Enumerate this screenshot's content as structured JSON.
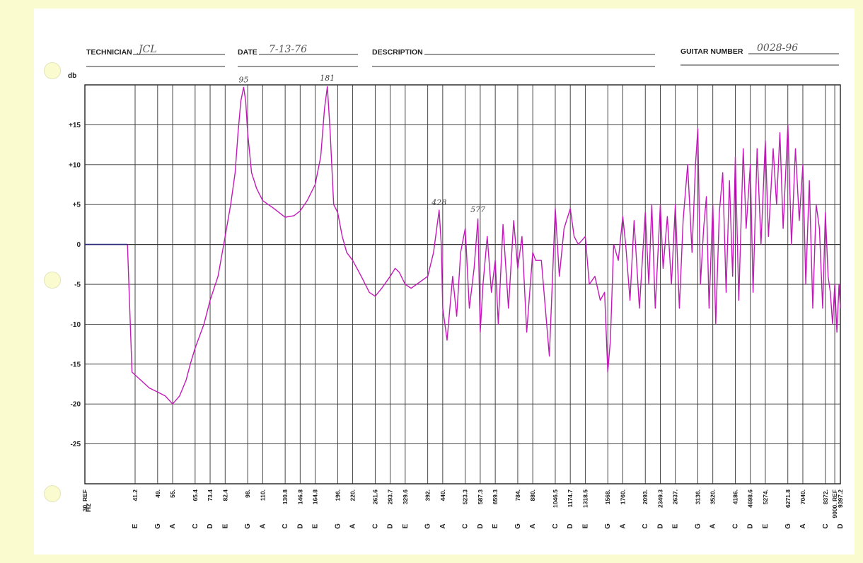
{
  "header": {
    "technician_label": "TECHNICIAN",
    "technician_value": "JCL",
    "date_label": "DATE",
    "date_value": "7-13-76",
    "description_label": "DESCRIPTION",
    "description_value": "",
    "guitar_number_label": "GUITAR NUMBER",
    "guitar_number_value": "0028-96"
  },
  "chart_data": {
    "type": "line",
    "title": "",
    "ylabel": "db",
    "xlabel": "Hz",
    "ylim": [
      -30,
      20
    ],
    "y_ticks": [
      "+15",
      "+10",
      "+5",
      "0",
      "-5",
      "-10",
      "-15",
      "-20",
      "-25"
    ],
    "grid": true,
    "series_color": "#c21ab8",
    "x_ticks": [
      {
        "freq": "30. REF",
        "note": ""
      },
      {
        "freq": "41.2",
        "note": "E"
      },
      {
        "freq": "49.",
        "note": "G"
      },
      {
        "freq": "55.",
        "note": "A"
      },
      {
        "freq": "65.4",
        "note": "C"
      },
      {
        "freq": "73.4",
        "note": "D"
      },
      {
        "freq": "82.4",
        "note": "E"
      },
      {
        "freq": "98.",
        "note": "G"
      },
      {
        "freq": "110.",
        "note": "A"
      },
      {
        "freq": "130.8",
        "note": "C"
      },
      {
        "freq": "146.8",
        "note": "D"
      },
      {
        "freq": "164.8",
        "note": "E"
      },
      {
        "freq": "196.",
        "note": "G"
      },
      {
        "freq": "220.",
        "note": "A"
      },
      {
        "freq": "261.6",
        "note": "C"
      },
      {
        "freq": "293.7",
        "note": "D"
      },
      {
        "freq": "329.6",
        "note": "E"
      },
      {
        "freq": "392.",
        "note": "G"
      },
      {
        "freq": "440.",
        "note": "A"
      },
      {
        "freq": "523.3",
        "note": "C"
      },
      {
        "freq": "587.3",
        "note": "D"
      },
      {
        "freq": "659.3",
        "note": "E"
      },
      {
        "freq": "784.",
        "note": "G"
      },
      {
        "freq": "880.",
        "note": "A"
      },
      {
        "freq": "1046.5",
        "note": "C"
      },
      {
        "freq": "1174.7",
        "note": "D"
      },
      {
        "freq": "1318.5",
        "note": "E"
      },
      {
        "freq": "1568.",
        "note": "G"
      },
      {
        "freq": "1760.",
        "note": "A"
      },
      {
        "freq": "2093.",
        "note": "C"
      },
      {
        "freq": "2349.3",
        "note": "D"
      },
      {
        "freq": "2637.",
        "note": "E"
      },
      {
        "freq": "3136.",
        "note": "G"
      },
      {
        "freq": "3520.",
        "note": "A"
      },
      {
        "freq": "4186.",
        "note": "C"
      },
      {
        "freq": "4698.6",
        "note": "D"
      },
      {
        "freq": "5274.",
        "note": "E"
      },
      {
        "freq": "6271.8",
        "note": "G"
      },
      {
        "freq": "7040.",
        "note": "A"
      },
      {
        "freq": "8372.",
        "note": "C"
      },
      {
        "freq": "9000. REF",
        "note": ""
      },
      {
        "freq": "9397.2",
        "note": "D"
      }
    ],
    "annotations": [
      {
        "text": "95",
        "freq": 95,
        "db": 19.8
      },
      {
        "text": "181",
        "freq": 181,
        "db": 20.0
      },
      {
        "text": "428",
        "freq": 428,
        "db": 4.4
      },
      {
        "text": "577",
        "freq": 577,
        "db": 3.5
      }
    ],
    "response": [
      [
        30,
        0
      ],
      [
        34,
        0
      ],
      [
        38,
        0
      ],
      [
        39.5,
        0
      ],
      [
        40,
        -8
      ],
      [
        40.5,
        -16
      ],
      [
        43,
        -17
      ],
      [
        46,
        -18
      ],
      [
        49,
        -18.5
      ],
      [
        52,
        -19
      ],
      [
        55,
        -20
      ],
      [
        58,
        -19
      ],
      [
        61,
        -17
      ],
      [
        63,
        -15
      ],
      [
        65.4,
        -13
      ],
      [
        70,
        -10
      ],
      [
        73.4,
        -7
      ],
      [
        78,
        -4
      ],
      [
        82.4,
        1
      ],
      [
        86,
        5
      ],
      [
        89,
        9
      ],
      [
        91,
        14
      ],
      [
        93,
        18
      ],
      [
        95,
        19.7
      ],
      [
        96.5,
        18
      ],
      [
        98,
        14
      ],
      [
        101,
        9
      ],
      [
        105,
        7
      ],
      [
        110,
        5.5
      ],
      [
        120,
        4.5
      ],
      [
        130.8,
        3.4
      ],
      [
        140,
        3.6
      ],
      [
        146.8,
        4.2
      ],
      [
        155,
        5.5
      ],
      [
        164.8,
        7.5
      ],
      [
        172,
        11
      ],
      [
        177,
        17
      ],
      [
        181,
        19.8
      ],
      [
        185,
        14
      ],
      [
        190,
        5
      ],
      [
        196,
        4
      ],
      [
        203,
        1
      ],
      [
        210,
        -1
      ],
      [
        220,
        -2
      ],
      [
        235,
        -4
      ],
      [
        250,
        -6
      ],
      [
        261.6,
        -6.5
      ],
      [
        275,
        -5.5
      ],
      [
        293.7,
        -4
      ],
      [
        305,
        -3
      ],
      [
        315,
        -3.5
      ],
      [
        329.6,
        -5
      ],
      [
        345,
        -5.5
      ],
      [
        360,
        -5
      ],
      [
        392,
        -4
      ],
      [
        410,
        -1
      ],
      [
        428,
        4.3
      ],
      [
        435,
        0
      ],
      [
        440,
        -8
      ],
      [
        455,
        -12
      ],
      [
        475,
        -4
      ],
      [
        490,
        -9
      ],
      [
        505,
        -1
      ],
      [
        523.3,
        2
      ],
      [
        540,
        -8
      ],
      [
        560,
        -3
      ],
      [
        577,
        3.2
      ],
      [
        587.3,
        -11
      ],
      [
        600,
        -5
      ],
      [
        620,
        1
      ],
      [
        640,
        -6
      ],
      [
        659.3,
        -2
      ],
      [
        675,
        -10
      ],
      [
        700,
        2.5
      ],
      [
        730,
        -8
      ],
      [
        760,
        3
      ],
      [
        784,
        -3
      ],
      [
        810,
        1
      ],
      [
        840,
        -11
      ],
      [
        880,
        -1
      ],
      [
        900,
        -2
      ],
      [
        940,
        -2
      ],
      [
        1000,
        -14
      ],
      [
        1046.5,
        4.5
      ],
      [
        1080,
        -4
      ],
      [
        1120,
        2
      ],
      [
        1174.7,
        4.5
      ],
      [
        1210,
        1
      ],
      [
        1250,
        0
      ],
      [
        1318.5,
        1
      ],
      [
        1360,
        -5
      ],
      [
        1420,
        -4
      ],
      [
        1480,
        -7
      ],
      [
        1530,
        -6
      ],
      [
        1568,
        -16
      ],
      [
        1600,
        -12
      ],
      [
        1640,
        0
      ],
      [
        1700,
        -2
      ],
      [
        1760,
        3.5
      ],
      [
        1800,
        0
      ],
      [
        1860,
        -7
      ],
      [
        1920,
        3
      ],
      [
        2000,
        -8
      ],
      [
        2093,
        4
      ],
      [
        2150,
        -5
      ],
      [
        2200,
        5
      ],
      [
        2260,
        -8
      ],
      [
        2349.3,
        5
      ],
      [
        2400,
        -3
      ],
      [
        2480,
        3.5
      ],
      [
        2560,
        -5
      ],
      [
        2637,
        5
      ],
      [
        2720,
        -8
      ],
      [
        2800,
        3
      ],
      [
        2900,
        10
      ],
      [
        3000,
        -1
      ],
      [
        3080,
        10
      ],
      [
        3136,
        14.5
      ],
      [
        3200,
        -5
      ],
      [
        3280,
        2
      ],
      [
        3350,
        6
      ],
      [
        3420,
        -8
      ],
      [
        3520,
        5
      ],
      [
        3600,
        -10
      ],
      [
        3700,
        4
      ],
      [
        3800,
        9
      ],
      [
        3900,
        -6
      ],
      [
        4000,
        8
      ],
      [
        4100,
        -4
      ],
      [
        4186,
        11
      ],
      [
        4300,
        -7
      ],
      [
        4450,
        12
      ],
      [
        4550,
        2
      ],
      [
        4698.6,
        10
      ],
      [
        4800,
        -6
      ],
      [
        4950,
        12
      ],
      [
        5100,
        0
      ],
      [
        5274,
        13
      ],
      [
        5400,
        1
      ],
      [
        5600,
        12
      ],
      [
        5750,
        5
      ],
      [
        5900,
        14
      ],
      [
        6050,
        2
      ],
      [
        6271.8,
        15
      ],
      [
        6450,
        0
      ],
      [
        6650,
        12
      ],
      [
        6850,
        3
      ],
      [
        7040,
        10
      ],
      [
        7200,
        -5
      ],
      [
        7400,
        8
      ],
      [
        7600,
        -8
      ],
      [
        7800,
        5
      ],
      [
        8000,
        2
      ],
      [
        8200,
        -8
      ],
      [
        8372,
        4
      ],
      [
        8550,
        -4
      ],
      [
        8700,
        -6
      ],
      [
        8850,
        -10
      ],
      [
        9000,
        -5
      ],
      [
        9150,
        -11
      ],
      [
        9300,
        -5
      ],
      [
        9397.2,
        -8
      ]
    ]
  }
}
